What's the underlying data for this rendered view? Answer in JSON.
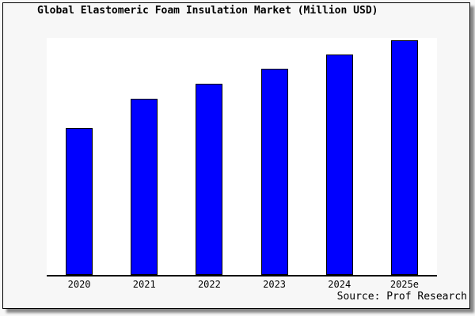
{
  "page": {
    "background_color": "#F7F7F7",
    "frame_border_color": "#000000"
  },
  "chart_data": {
    "type": "bar",
    "title": "Global Elastomeric Foam Insulation Market (Million USD)",
    "categories": [
      "2020",
      "2021",
      "2022",
      "2023",
      "2024",
      "2025e"
    ],
    "values": [
      62,
      74.3,
      80.7,
      87,
      93,
      99
    ],
    "values_note": "No y-axis scale or data labels shown in image; values are bar heights as percent of plot height",
    "xlabel": "",
    "ylabel": "",
    "ylim": [
      0,
      100
    ],
    "grid": false,
    "legend": false,
    "bar_color": "#0000FF",
    "bar_border_color": "#000000",
    "plot_background": "#FFFFFF",
    "axis_color": "#000000"
  },
  "footer": {
    "source_label": "Source: Prof Research"
  }
}
